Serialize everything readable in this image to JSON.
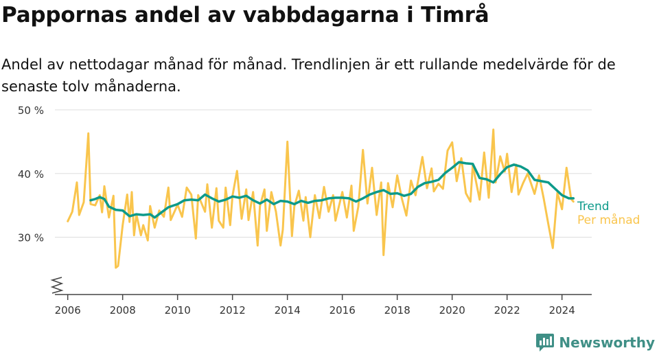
{
  "title": "Pappornas andel av vabbdagarna i Timrå",
  "subtitle": "Andel av nettodagar månad för månad. Trendlinjen är ett rullande medelvärde för de senaste tolv månaderna.",
  "brand": {
    "name": "Newsworthy",
    "icon": "bar-chart-speech-bubble-icon",
    "color": "#3f8f86"
  },
  "chart_data": {
    "type": "line",
    "title": "Pappornas andel av vabbdagarna i Timrå",
    "xlabel": "",
    "ylabel": "",
    "x_ticks": [
      "2006",
      "2008",
      "2010",
      "2012",
      "2014",
      "2016",
      "2018",
      "2020",
      "2022",
      "2024"
    ],
    "y_ticks": [
      {
        "value": 30,
        "label": "30 %"
      },
      {
        "value": 40,
        "label": "40 %"
      },
      {
        "value": 50,
        "label": "50 %"
      }
    ],
    "xlim": [
      "2005-11",
      "2025-02"
    ],
    "ylim": [
      21,
      50
    ],
    "y_axis_break": true,
    "grid": "horizontal",
    "legend": "right, at line ends",
    "series": [
      {
        "name": "Trend",
        "color": "#0d9a8a",
        "points": [
          [
            "2006-11",
            35.8
          ],
          [
            "2007-01",
            36.0
          ],
          [
            "2007-03",
            36.3
          ],
          [
            "2007-05",
            36.0
          ],
          [
            "2007-07",
            34.8
          ],
          [
            "2007-10",
            34.3
          ],
          [
            "2008-01",
            34.2
          ],
          [
            "2008-04",
            33.3
          ],
          [
            "2008-07",
            33.6
          ],
          [
            "2008-10",
            33.5
          ],
          [
            "2009-01",
            33.6
          ],
          [
            "2009-03",
            33.1
          ],
          [
            "2009-06",
            33.9
          ],
          [
            "2009-09",
            34.7
          ],
          [
            "2010-01",
            35.2
          ],
          [
            "2010-04",
            35.8
          ],
          [
            "2010-07",
            35.9
          ],
          [
            "2010-10",
            35.8
          ],
          [
            "2011-01",
            36.7
          ],
          [
            "2011-04",
            36.1
          ],
          [
            "2011-07",
            35.6
          ],
          [
            "2011-10",
            35.9
          ],
          [
            "2012-01",
            36.4
          ],
          [
            "2012-04",
            36.2
          ],
          [
            "2012-07",
            36.5
          ],
          [
            "2012-10",
            35.8
          ],
          [
            "2013-01",
            35.3
          ],
          [
            "2013-04",
            35.9
          ],
          [
            "2013-07",
            35.2
          ],
          [
            "2013-10",
            35.7
          ],
          [
            "2014-01",
            35.6
          ],
          [
            "2014-04",
            35.2
          ],
          [
            "2014-07",
            35.7
          ],
          [
            "2014-10",
            35.4
          ],
          [
            "2015-01",
            35.7
          ],
          [
            "2015-04",
            35.8
          ],
          [
            "2015-07",
            36.1
          ],
          [
            "2015-10",
            36.2
          ],
          [
            "2016-01",
            36.2
          ],
          [
            "2016-04",
            36.1
          ],
          [
            "2016-07",
            35.6
          ],
          [
            "2016-10",
            36.1
          ],
          [
            "2017-01",
            36.7
          ],
          [
            "2017-04",
            37.1
          ],
          [
            "2017-07",
            37.4
          ],
          [
            "2017-10",
            36.8
          ],
          [
            "2018-01",
            36.9
          ],
          [
            "2018-04",
            36.5
          ],
          [
            "2018-07",
            36.8
          ],
          [
            "2018-10",
            37.9
          ],
          [
            "2019-01",
            38.5
          ],
          [
            "2019-04",
            38.7
          ],
          [
            "2019-07",
            39.0
          ],
          [
            "2019-10",
            40.1
          ],
          [
            "2020-01",
            40.9
          ],
          [
            "2020-04",
            41.8
          ],
          [
            "2020-07",
            41.6
          ],
          [
            "2020-10",
            41.5
          ],
          [
            "2021-01",
            39.3
          ],
          [
            "2021-04",
            39.1
          ],
          [
            "2021-07",
            38.6
          ],
          [
            "2021-10",
            39.9
          ],
          [
            "2022-01",
            41.0
          ],
          [
            "2022-04",
            41.4
          ],
          [
            "2022-07",
            41.1
          ],
          [
            "2022-10",
            40.5
          ],
          [
            "2023-01",
            39.0
          ],
          [
            "2023-04",
            38.8
          ],
          [
            "2023-07",
            38.6
          ],
          [
            "2023-10",
            37.6
          ],
          [
            "2024-01",
            36.6
          ],
          [
            "2024-04",
            36.1
          ],
          [
            "2024-06",
            36.1
          ]
        ]
      },
      {
        "name": "Per månad",
        "color": "#f9c54d",
        "points": [
          [
            "2006-01",
            32.5
          ],
          [
            "2006-03",
            34.0
          ],
          [
            "2006-05",
            38.6
          ],
          [
            "2006-06",
            33.5
          ],
          [
            "2006-08",
            35.5
          ],
          [
            "2006-10",
            46.3
          ],
          [
            "2006-11",
            35.2
          ],
          [
            "2007-01",
            35.0
          ],
          [
            "2007-03",
            36.6
          ],
          [
            "2007-04",
            33.9
          ],
          [
            "2007-05",
            38.0
          ],
          [
            "2007-07",
            33.1
          ],
          [
            "2007-09",
            36.5
          ],
          [
            "2007-10",
            25.2
          ],
          [
            "2007-11",
            25.5
          ],
          [
            "2008-01",
            31.9
          ],
          [
            "2008-03",
            36.7
          ],
          [
            "2008-04",
            32.4
          ],
          [
            "2008-05",
            37.1
          ],
          [
            "2008-06",
            30.3
          ],
          [
            "2008-07",
            33.6
          ],
          [
            "2008-09",
            30.3
          ],
          [
            "2008-10",
            31.9
          ],
          [
            "2008-12",
            29.5
          ],
          [
            "2009-01",
            34.9
          ],
          [
            "2009-03",
            31.5
          ],
          [
            "2009-05",
            34.2
          ],
          [
            "2009-07",
            33.2
          ],
          [
            "2009-09",
            37.8
          ],
          [
            "2009-10",
            32.7
          ],
          [
            "2010-01",
            35.1
          ],
          [
            "2010-03",
            33.2
          ],
          [
            "2010-05",
            37.8
          ],
          [
            "2010-07",
            36.7
          ],
          [
            "2010-09",
            29.8
          ],
          [
            "2010-10",
            36.6
          ],
          [
            "2011-01",
            34.0
          ],
          [
            "2011-02",
            38.3
          ],
          [
            "2011-04",
            31.5
          ],
          [
            "2011-06",
            37.7
          ],
          [
            "2011-07",
            32.6
          ],
          [
            "2011-09",
            31.5
          ],
          [
            "2011-10",
            37.8
          ],
          [
            "2011-12",
            31.9
          ],
          [
            "2012-01",
            36.5
          ],
          [
            "2012-03",
            40.4
          ],
          [
            "2012-05",
            32.9
          ],
          [
            "2012-07",
            37.5
          ],
          [
            "2012-08",
            32.7
          ],
          [
            "2012-10",
            37.1
          ],
          [
            "2012-12",
            28.7
          ],
          [
            "2013-01",
            34.9
          ],
          [
            "2013-03",
            37.5
          ],
          [
            "2013-04",
            31.0
          ],
          [
            "2013-06",
            37.1
          ],
          [
            "2013-08",
            34.0
          ],
          [
            "2013-10",
            28.7
          ],
          [
            "2013-11",
            31.2
          ],
          [
            "2014-01",
            45.0
          ],
          [
            "2014-03",
            30.2
          ],
          [
            "2014-04",
            34.8
          ],
          [
            "2014-06",
            37.3
          ],
          [
            "2014-08",
            32.6
          ],
          [
            "2014-09",
            36.3
          ],
          [
            "2014-11",
            30.0
          ],
          [
            "2015-01",
            36.6
          ],
          [
            "2015-03",
            33.0
          ],
          [
            "2015-05",
            37.9
          ],
          [
            "2015-07",
            34.0
          ],
          [
            "2015-09",
            36.6
          ],
          [
            "2015-10",
            32.6
          ],
          [
            "2016-01",
            37.1
          ],
          [
            "2016-03",
            33.1
          ],
          [
            "2016-05",
            38.1
          ],
          [
            "2016-06",
            31.0
          ],
          [
            "2016-08",
            34.8
          ],
          [
            "2016-10",
            43.7
          ],
          [
            "2016-12",
            35.3
          ],
          [
            "2017-02",
            40.9
          ],
          [
            "2017-04",
            33.5
          ],
          [
            "2017-06",
            38.6
          ],
          [
            "2017-07",
            27.2
          ],
          [
            "2017-09",
            38.5
          ],
          [
            "2017-11",
            34.7
          ],
          [
            "2018-01",
            39.7
          ],
          [
            "2018-03",
            36.1
          ],
          [
            "2018-05",
            33.4
          ],
          [
            "2018-07",
            38.9
          ],
          [
            "2018-09",
            36.6
          ],
          [
            "2018-12",
            42.6
          ],
          [
            "2019-02",
            37.7
          ],
          [
            "2019-04",
            40.8
          ],
          [
            "2019-05",
            37.2
          ],
          [
            "2019-07",
            38.4
          ],
          [
            "2019-09",
            37.6
          ],
          [
            "2019-11",
            43.6
          ],
          [
            "2020-01",
            44.9
          ],
          [
            "2020-03",
            38.8
          ],
          [
            "2020-05",
            42.4
          ],
          [
            "2020-07",
            36.9
          ],
          [
            "2020-09",
            35.6
          ],
          [
            "2020-10",
            41.3
          ],
          [
            "2021-01",
            35.9
          ],
          [
            "2021-03",
            43.3
          ],
          [
            "2021-05",
            36.2
          ],
          [
            "2021-07",
            46.9
          ],
          [
            "2021-08",
            38.6
          ],
          [
            "2021-10",
            42.7
          ],
          [
            "2021-12",
            40.3
          ],
          [
            "2022-01",
            43.1
          ],
          [
            "2022-03",
            37.1
          ],
          [
            "2022-05",
            41.4
          ],
          [
            "2022-06",
            36.7
          ],
          [
            "2022-08",
            38.5
          ],
          [
            "2022-10",
            40.0
          ],
          [
            "2023-01",
            36.8
          ],
          [
            "2023-03",
            39.7
          ],
          [
            "2023-05",
            36.1
          ],
          [
            "2023-07",
            32.1
          ],
          [
            "2023-09",
            28.3
          ],
          [
            "2023-11",
            37.0
          ],
          [
            "2024-01",
            34.4
          ],
          [
            "2024-03",
            40.9
          ],
          [
            "2024-05",
            36.0
          ],
          [
            "2024-06",
            35.6
          ]
        ]
      }
    ]
  }
}
